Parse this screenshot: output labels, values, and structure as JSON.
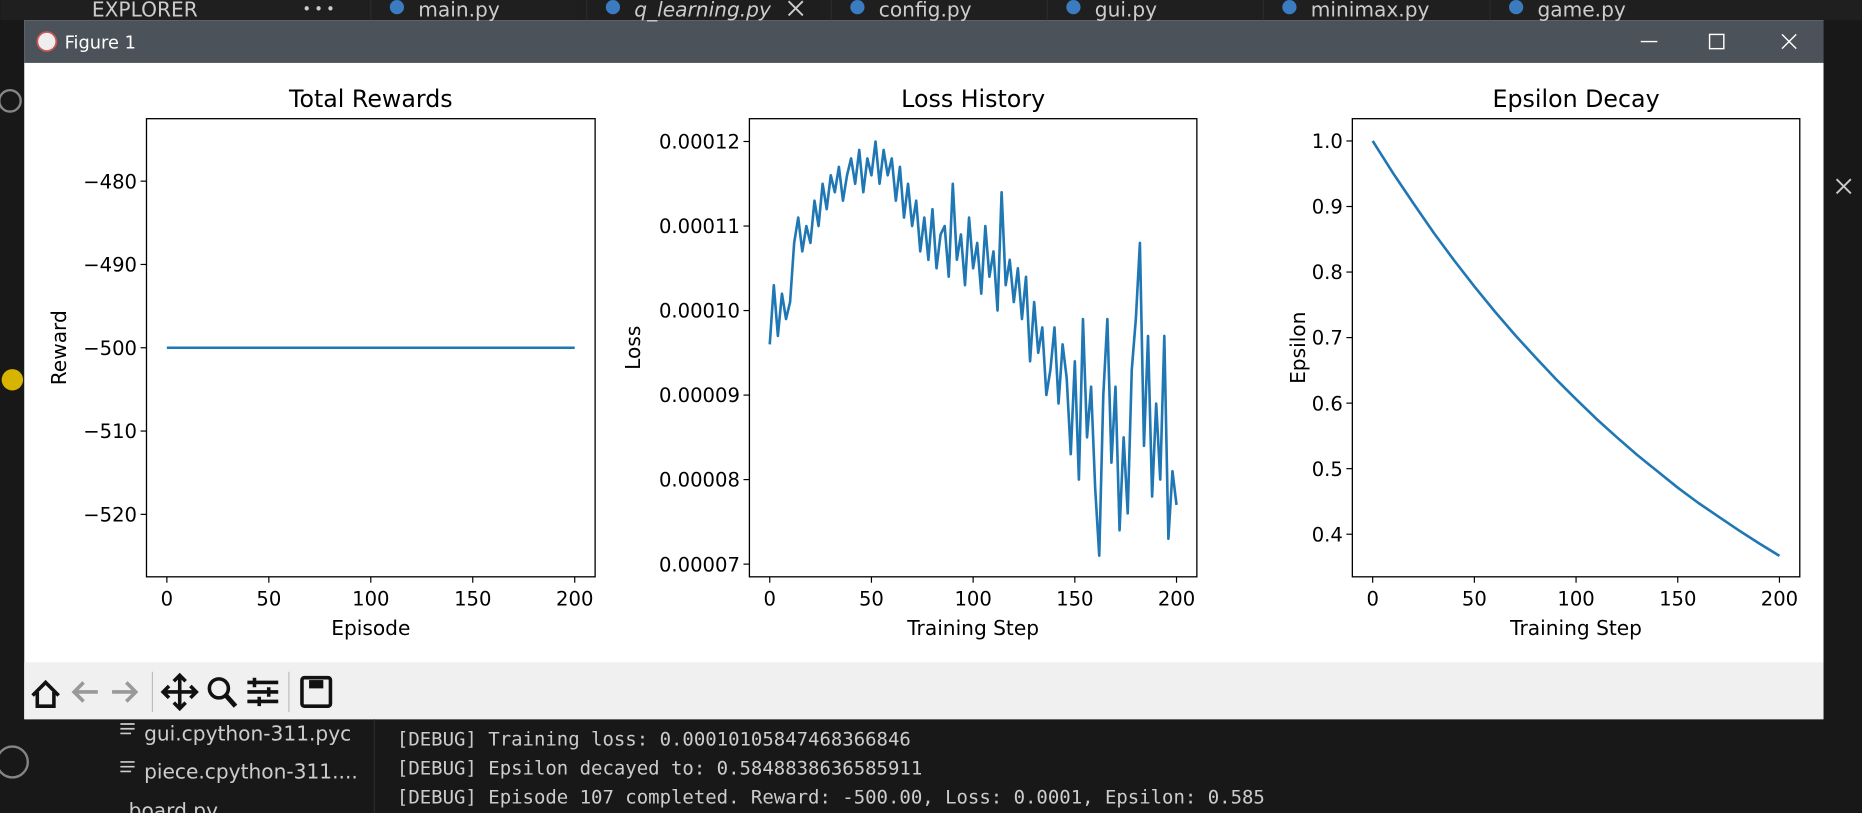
{
  "editor_tabs": [
    "EXPLORER",
    "main.py",
    "q_learning.py",
    "config.py",
    "gui.py",
    "minimax.py",
    "game.py"
  ],
  "window_title": "Figure 1",
  "explorer_files": [
    "gui.cpython-311.pyc",
    "piece.cpython-311....",
    "board.py"
  ],
  "terminal_lines": [
    "[DEBUG] Training loss: 0.00010105847468366846",
    "[DEBUG] Epsilon decayed to: 0.5848838636585911",
    "[DEBUG] Episode 107 completed. Reward: -500.00, Loss: 0.0001, Epsilon: 0.585"
  ],
  "chart_data": [
    {
      "type": "line",
      "title": "Total Rewards",
      "x_label": "Episode",
      "y_label": "Reward",
      "color": "#1f77b4",
      "x": [
        0,
        50,
        100,
        150,
        200
      ],
      "values": [
        -500,
        -500,
        -500,
        -500,
        -500
      ],
      "xlim": [
        -10,
        210
      ],
      "ylim": [
        -527.5,
        -472.5
      ],
      "xticks": [
        0,
        50,
        100,
        150,
        200
      ],
      "yticks": [
        {
          "value": -480,
          "label": "−480"
        },
        {
          "value": -490,
          "label": "−490"
        },
        {
          "value": -500,
          "label": "−500"
        },
        {
          "value": -510,
          "label": "−510"
        },
        {
          "value": -520,
          "label": "−520"
        }
      ]
    },
    {
      "type": "line",
      "title": "Loss History",
      "x_label": "Training Step",
      "y_label": "Loss",
      "color": "#1f77b4",
      "x": [
        0,
        2,
        4,
        6,
        8,
        10,
        12,
        14,
        16,
        18,
        20,
        22,
        24,
        26,
        28,
        30,
        32,
        34,
        36,
        38,
        40,
        42,
        44,
        46,
        48,
        50,
        52,
        54,
        56,
        58,
        60,
        62,
        64,
        66,
        68,
        70,
        72,
        74,
        76,
        78,
        80,
        82,
        84,
        86,
        88,
        90,
        92,
        94,
        96,
        98,
        100,
        102,
        104,
        106,
        108,
        110,
        112,
        114,
        116,
        118,
        120,
        122,
        124,
        126,
        128,
        130,
        132,
        134,
        136,
        138,
        140,
        142,
        144,
        146,
        148,
        150,
        152,
        154,
        156,
        158,
        160,
        162,
        164,
        166,
        168,
        170,
        172,
        174,
        176,
        178,
        180,
        182,
        184,
        186,
        188,
        190,
        192,
        194,
        196,
        198,
        200
      ],
      "values": [
        9.6e-05,
        0.000103,
        9.7e-05,
        0.000102,
        9.9e-05,
        0.000101,
        0.000108,
        0.000111,
        0.000107,
        0.00011,
        0.000108,
        0.000113,
        0.00011,
        0.000115,
        0.000112,
        0.000116,
        0.000114,
        0.000117,
        0.000113,
        0.000116,
        0.000118,
        0.000115,
        0.000119,
        0.000114,
        0.000118,
        0.000116,
        0.00012,
        0.000115,
        0.000119,
        0.000116,
        0.000118,
        0.000113,
        0.000117,
        0.000111,
        0.000115,
        0.00011,
        0.000113,
        0.000107,
        0.000111,
        0.000106,
        0.000112,
        0.000105,
        0.000109,
        0.00011,
        0.000104,
        0.000115,
        0.000106,
        0.000109,
        0.000103,
        0.000111,
        0.000105,
        0.000108,
        0.000102,
        0.00011,
        0.000104,
        0.000107,
        0.0001,
        0.000114,
        0.000103,
        0.000106,
        0.000101,
        0.000105,
        9.9e-05,
        0.000104,
        9.4e-05,
        0.000101,
        9.5e-05,
        9.8e-05,
        9e-05,
        9.3e-05,
        9.8e-05,
        8.9e-05,
        9.6e-05,
        9.2e-05,
        8.3e-05,
        9.4e-05,
        8e-05,
        9.9e-05,
        8.5e-05,
        9.1e-05,
        7.9e-05,
        7.1e-05,
        9e-05,
        9.9e-05,
        8.2e-05,
        9.1e-05,
        7.4e-05,
        8.5e-05,
        7.6e-05,
        9.3e-05,
        9.9e-05,
        0.000108,
        8.4e-05,
        9.7e-05,
        7.8e-05,
        8.9e-05,
        8e-05,
        9.7e-05,
        7.3e-05,
        8.1e-05,
        7.7e-05
      ],
      "xlim": [
        -10,
        210
      ],
      "ylim": [
        6.85e-05,
        0.0001227
      ],
      "xticks": [
        0,
        50,
        100,
        150,
        200
      ],
      "yticks": [
        {
          "value": 7e-05,
          "label": "0.00007"
        },
        {
          "value": 8e-05,
          "label": "0.00008"
        },
        {
          "value": 9e-05,
          "label": "0.00009"
        },
        {
          "value": 0.0001,
          "label": "0.00010"
        },
        {
          "value": 0.00011,
          "label": "0.00011"
        },
        {
          "value": 0.00012,
          "label": "0.00012"
        }
      ]
    },
    {
      "type": "line",
      "title": "Epsilon Decay",
      "x_label": "Training Step",
      "y_label": "Epsilon",
      "color": "#1f77b4",
      "x": [
        0,
        10,
        20,
        30,
        40,
        50,
        60,
        70,
        80,
        90,
        100,
        110,
        120,
        130,
        140,
        150,
        160,
        170,
        180,
        190,
        200
      ],
      "values": [
        1.0,
        0.951,
        0.905,
        0.86,
        0.818,
        0.778,
        0.74,
        0.704,
        0.67,
        0.637,
        0.606,
        0.576,
        0.548,
        0.521,
        0.496,
        0.471,
        0.448,
        0.427,
        0.406,
        0.386,
        0.367
      ],
      "xlim": [
        -10,
        210
      ],
      "ylim": [
        0.335,
        1.034
      ],
      "xticks": [
        0,
        50,
        100,
        150,
        200
      ],
      "yticks": [
        {
          "value": 0.4,
          "label": "0.4"
        },
        {
          "value": 0.5,
          "label": "0.5"
        },
        {
          "value": 0.6,
          "label": "0.6"
        },
        {
          "value": 0.7,
          "label": "0.7"
        },
        {
          "value": 0.8,
          "label": "0.8"
        },
        {
          "value": 0.9,
          "label": "0.9"
        },
        {
          "value": 1.0,
          "label": "1.0"
        }
      ]
    }
  ]
}
